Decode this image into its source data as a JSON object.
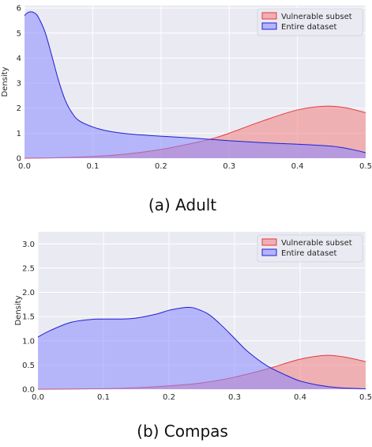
{
  "figure": {
    "colors": {
      "vulnerable_fill": "#f08080",
      "vulnerable_line": "#e8383d",
      "entire_fill": "#8888ff",
      "entire_line": "#1f1fd6",
      "panel_background": "#eaeaf2",
      "grid": "#ffffff"
    }
  },
  "chart_data": [
    {
      "type": "area",
      "caption": "(a) Adult",
      "ylabel": "Density",
      "xlabel": "",
      "xlim": [
        0.0,
        0.5
      ],
      "ylim": [
        0,
        6.1
      ],
      "xticks": [
        "0.0",
        "0.1",
        "0.2",
        "0.3",
        "0.4",
        "0.5"
      ],
      "yticks": [
        "0",
        "1",
        "2",
        "3",
        "4",
        "5",
        "6"
      ],
      "grid": true,
      "legend_position": "top-right",
      "series": [
        {
          "name": "Vulnerable subset",
          "x": [
            0.0,
            0.05,
            0.1,
            0.15,
            0.2,
            0.25,
            0.28,
            0.3,
            0.35,
            0.4,
            0.44,
            0.47,
            0.5
          ],
          "y": [
            0.0,
            0.02,
            0.07,
            0.17,
            0.35,
            0.62,
            0.82,
            1.0,
            1.5,
            1.93,
            2.08,
            2.02,
            1.82
          ]
        },
        {
          "name": "Entire dataset",
          "x": [
            0.0,
            0.005,
            0.01,
            0.015,
            0.02,
            0.03,
            0.04,
            0.05,
            0.06,
            0.07,
            0.08,
            0.1,
            0.12,
            0.15,
            0.2,
            0.25,
            0.3,
            0.35,
            0.4,
            0.45,
            0.48,
            0.5
          ],
          "y": [
            5.7,
            5.82,
            5.85,
            5.8,
            5.65,
            5.05,
            4.1,
            3.1,
            2.3,
            1.8,
            1.5,
            1.25,
            1.1,
            0.98,
            0.88,
            0.8,
            0.7,
            0.62,
            0.56,
            0.48,
            0.35,
            0.22
          ]
        }
      ]
    },
    {
      "type": "area",
      "caption": "(b) Compas",
      "ylabel": "Density",
      "xlabel": "",
      "xlim": [
        0.0,
        0.5
      ],
      "ylim": [
        0,
        3.25
      ],
      "xticks": [
        "0.0",
        "0.1",
        "0.2",
        "0.3",
        "0.4",
        "0.5"
      ],
      "yticks": [
        "0.0",
        "0.5",
        "1.0",
        "1.5",
        "2.0",
        "2.5",
        "3.0"
      ],
      "grid": true,
      "legend_position": "top-right",
      "series": [
        {
          "name": "Vulnerable subset",
          "x": [
            0.0,
            0.1,
            0.15,
            0.2,
            0.25,
            0.3,
            0.35,
            0.4,
            0.44,
            0.47,
            0.5
          ],
          "y": [
            0.0,
            0.01,
            0.03,
            0.07,
            0.13,
            0.25,
            0.42,
            0.62,
            0.7,
            0.66,
            0.57
          ]
        },
        {
          "name": "Entire dataset",
          "x": [
            0.0,
            0.02,
            0.05,
            0.08,
            0.1,
            0.13,
            0.15,
            0.18,
            0.2,
            0.22,
            0.23,
            0.24,
            0.26,
            0.28,
            0.3,
            0.32,
            0.35,
            0.38,
            0.4,
            0.43,
            0.46,
            0.5
          ],
          "y": [
            1.08,
            1.22,
            1.38,
            1.44,
            1.45,
            1.45,
            1.47,
            1.55,
            1.63,
            1.68,
            1.69,
            1.67,
            1.55,
            1.32,
            1.05,
            0.78,
            0.48,
            0.28,
            0.17,
            0.08,
            0.03,
            0.01
          ]
        }
      ]
    }
  ]
}
